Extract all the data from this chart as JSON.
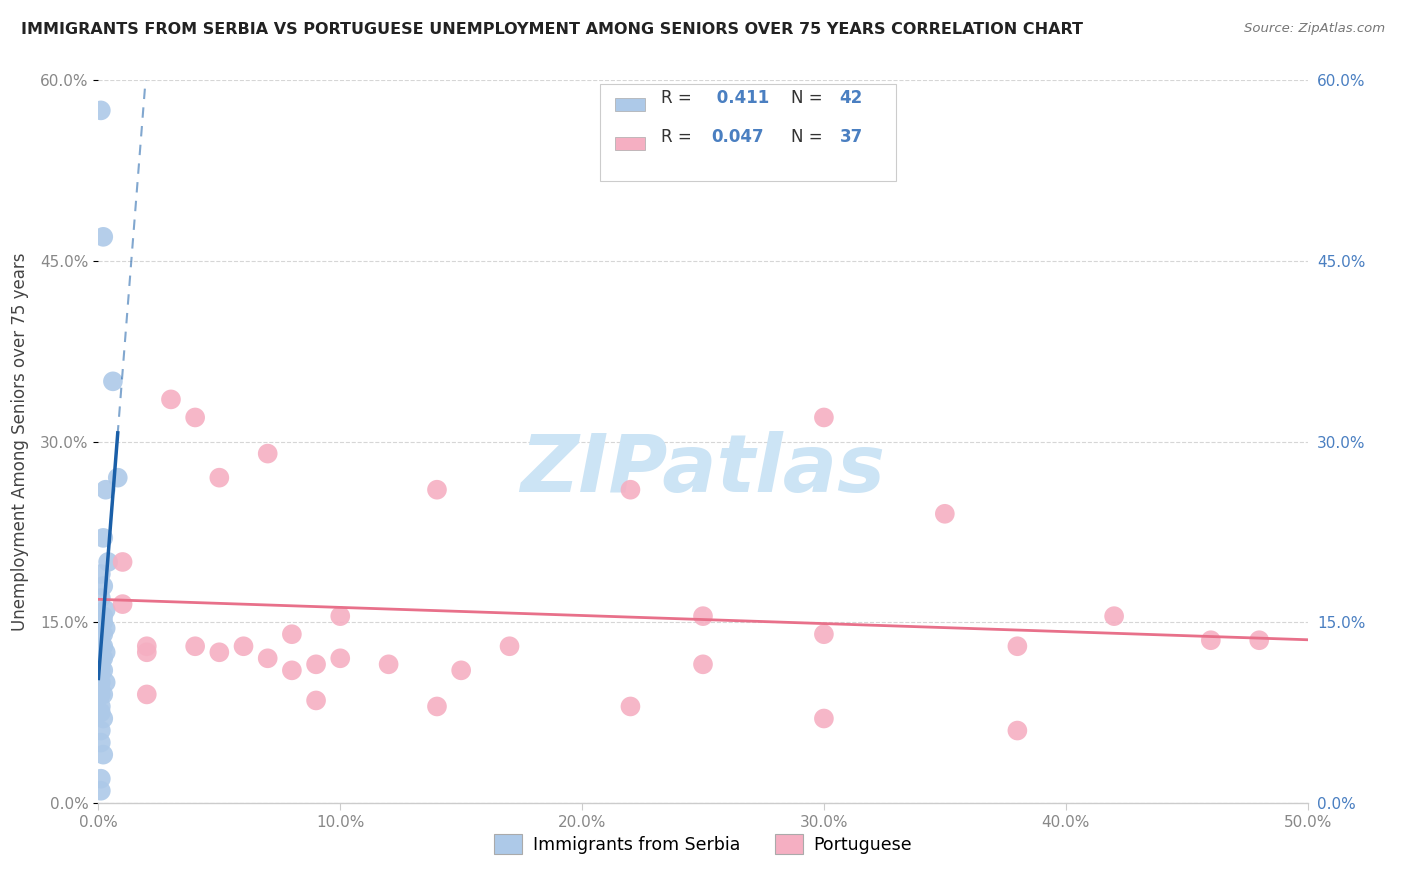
{
  "title": "IMMIGRANTS FROM SERBIA VS PORTUGUESE UNEMPLOYMENT AMONG SENIORS OVER 75 YEARS CORRELATION CHART",
  "source": "Source: ZipAtlas.com",
  "ylabel": "Unemployment Among Seniors over 75 years",
  "xlim": [
    0,
    0.5
  ],
  "ylim": [
    0,
    0.6
  ],
  "legend1_R": "0.411",
  "legend1_N": "42",
  "legend2_R": "0.047",
  "legend2_N": "37",
  "serbia_color": "#adc9e8",
  "portuguese_color": "#f5afc2",
  "serbia_line_color": "#1a5fa8",
  "portuguese_line_color": "#e8708a",
  "right_tick_color": "#4a7fc1",
  "left_tick_color": "#888888",
  "bottom_tick_color": "#888888",
  "grid_color": "#cccccc",
  "serbia_scatter": [
    [
      0.001,
      0.575
    ],
    [
      0.002,
      0.47
    ],
    [
      0.006,
      0.35
    ],
    [
      0.003,
      0.26
    ],
    [
      0.008,
      0.27
    ],
    [
      0.002,
      0.22
    ],
    [
      0.004,
      0.2
    ],
    [
      0.001,
      0.19
    ],
    [
      0.002,
      0.18
    ],
    [
      0.001,
      0.17
    ],
    [
      0.003,
      0.16
    ],
    [
      0.002,
      0.155
    ],
    [
      0.001,
      0.155
    ],
    [
      0.002,
      0.15
    ],
    [
      0.001,
      0.15
    ],
    [
      0.003,
      0.145
    ],
    [
      0.001,
      0.14
    ],
    [
      0.001,
      0.14
    ],
    [
      0.002,
      0.14
    ],
    [
      0.001,
      0.135
    ],
    [
      0.001,
      0.13
    ],
    [
      0.002,
      0.13
    ],
    [
      0.001,
      0.13
    ],
    [
      0.003,
      0.125
    ],
    [
      0.001,
      0.12
    ],
    [
      0.001,
      0.12
    ],
    [
      0.002,
      0.12
    ],
    [
      0.001,
      0.115
    ],
    [
      0.001,
      0.11
    ],
    [
      0.002,
      0.11
    ],
    [
      0.001,
      0.1
    ],
    [
      0.003,
      0.1
    ],
    [
      0.001,
      0.09
    ],
    [
      0.002,
      0.09
    ],
    [
      0.001,
      0.08
    ],
    [
      0.001,
      0.075
    ],
    [
      0.002,
      0.07
    ],
    [
      0.001,
      0.06
    ],
    [
      0.001,
      0.05
    ],
    [
      0.002,
      0.04
    ],
    [
      0.001,
      0.02
    ],
    [
      0.001,
      0.01
    ]
  ],
  "portuguese_scatter": [
    [
      0.03,
      0.335
    ],
    [
      0.07,
      0.29
    ],
    [
      0.05,
      0.27
    ],
    [
      0.04,
      0.32
    ],
    [
      0.3,
      0.32
    ],
    [
      0.22,
      0.26
    ],
    [
      0.35,
      0.24
    ],
    [
      0.14,
      0.26
    ],
    [
      0.01,
      0.2
    ],
    [
      0.01,
      0.165
    ],
    [
      0.1,
      0.155
    ],
    [
      0.25,
      0.155
    ],
    [
      0.42,
      0.155
    ],
    [
      0.48,
      0.135
    ],
    [
      0.08,
      0.14
    ],
    [
      0.17,
      0.13
    ],
    [
      0.04,
      0.13
    ],
    [
      0.06,
      0.13
    ],
    [
      0.02,
      0.13
    ],
    [
      0.02,
      0.125
    ],
    [
      0.05,
      0.125
    ],
    [
      0.07,
      0.12
    ],
    [
      0.1,
      0.12
    ],
    [
      0.09,
      0.115
    ],
    [
      0.12,
      0.115
    ],
    [
      0.08,
      0.11
    ],
    [
      0.15,
      0.11
    ],
    [
      0.25,
      0.115
    ],
    [
      0.3,
      0.14
    ],
    [
      0.38,
      0.13
    ],
    [
      0.02,
      0.09
    ],
    [
      0.09,
      0.085
    ],
    [
      0.14,
      0.08
    ],
    [
      0.22,
      0.08
    ],
    [
      0.3,
      0.07
    ],
    [
      0.38,
      0.06
    ],
    [
      0.46,
      0.135
    ]
  ],
  "watermark_text": "ZIPatlas",
  "watermark_color": "#cce4f5"
}
